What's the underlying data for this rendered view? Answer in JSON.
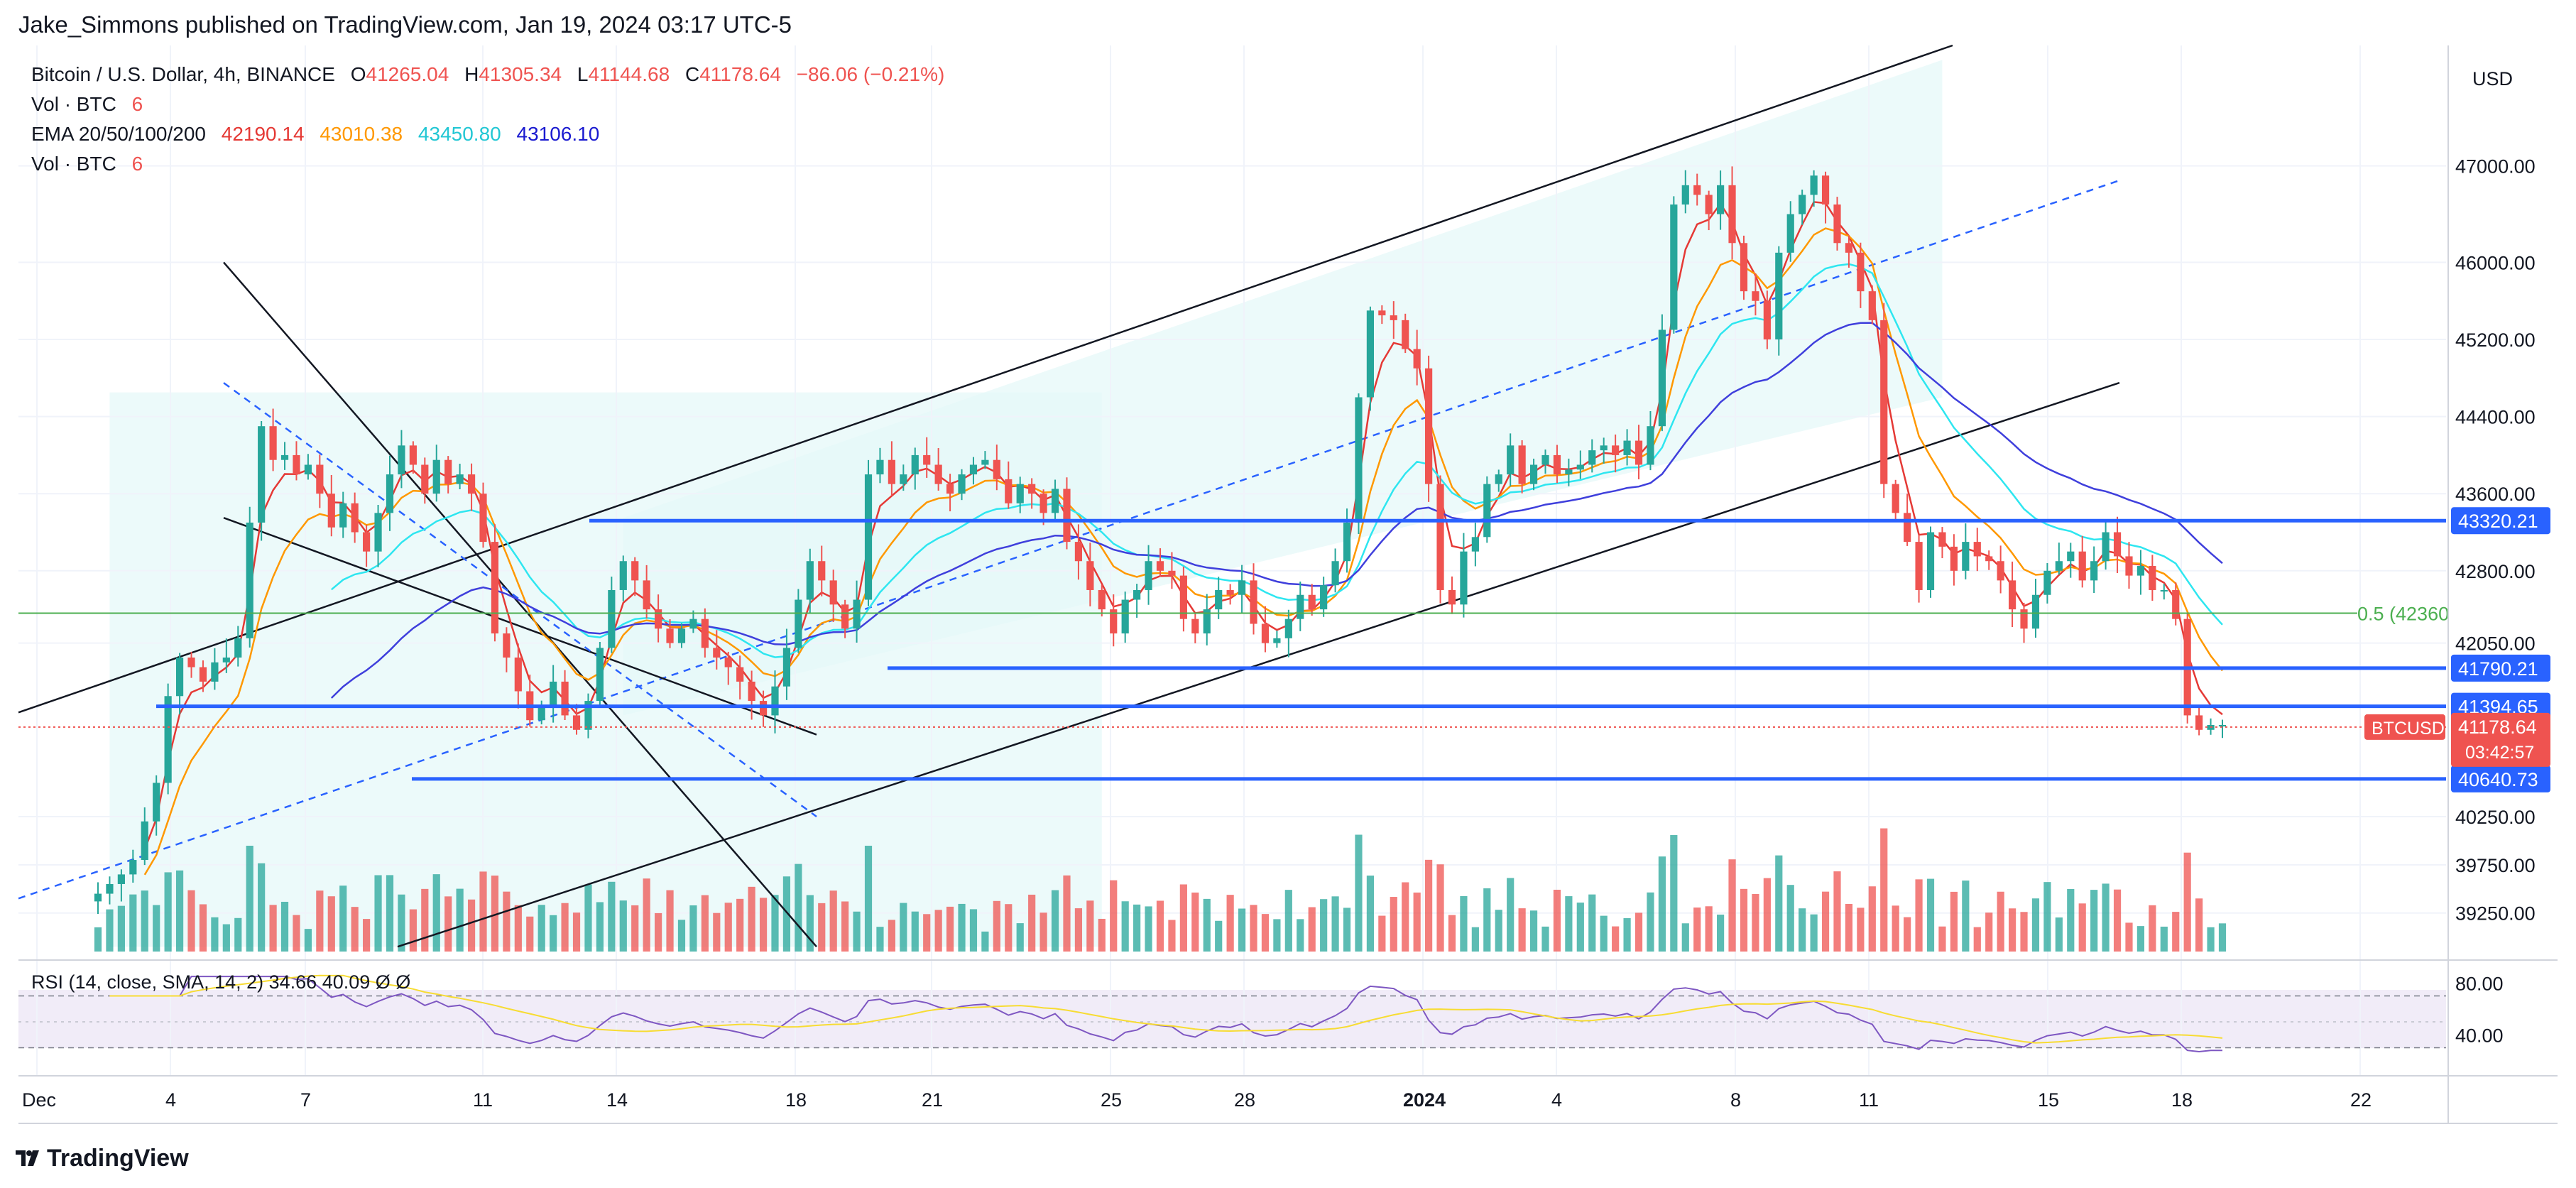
{
  "publisher": "Jake_Simmons published on TradingView.com, Jan 19, 2024 03:17 UTC-5",
  "legend": {
    "symbol": "Bitcoin / U.S. Dollar, 4h, BINANCE",
    "open_label": "O",
    "open": "41265.04",
    "high_label": "H",
    "high": "41305.34",
    "low_label": "L",
    "low": "41144.68",
    "close_label": "C",
    "close": "41178.64",
    "change": "−86.06 (−0.21%)",
    "vol_label": "Vol · BTC",
    "vol_value": "6",
    "ema_label": "EMA 20/50/100/200",
    "ema20": "42190.14",
    "ema50": "43010.38",
    "ema100": "43450.80",
    "ema200": "43106.10",
    "vol2_label": "Vol · BTC",
    "vol2_value": "6"
  },
  "colors": {
    "up": "#26a69a",
    "down": "#ef5350",
    "level": "#2962ff",
    "ema20": "#e53935",
    "ema50": "#ff9800",
    "ema100": "#2ee6f0",
    "ema200": "#3f3fdc",
    "fib": "#4caf50",
    "channel_fill": "#e6f8f8"
  },
  "chart_data": {
    "type": "candlestick",
    "instrument": "BTCUSD",
    "timeframe": "4h",
    "currency": "USD",
    "y_ticks": [
      "47000.00",
      "46000.00",
      "45200.00",
      "44400.00",
      "43600.00",
      "42800.00",
      "42050.00",
      "40250.00",
      "39750.00",
      "39250.00"
    ],
    "ylim": [
      38850,
      48250
    ],
    "x_ticks": [
      "Dec",
      "4",
      "7",
      "11",
      "14",
      "18",
      "21",
      "25",
      "28",
      "2024",
      "4",
      "8",
      "11",
      "15",
      "18",
      "22"
    ],
    "levels": [
      {
        "label": "43320.21",
        "value": 43320.21
      },
      {
        "label": "41790.21",
        "value": 41790.21
      },
      {
        "label": "41394.65",
        "value": 41394.65
      },
      {
        "label": "40640.73",
        "value": 40640.73
      }
    ],
    "fib": {
      "label": "0.5 (42360",
      "value": 42360
    },
    "price_label": {
      "symbol": "BTCUSD",
      "value": "41178.64",
      "countdown": "03:42:57"
    },
    "closes": [
      39450,
      39550,
      39650,
      39800,
      40200,
      40600,
      41500,
      41900,
      41800,
      41650,
      41850,
      41900,
      42100,
      43300,
      44300,
      43950,
      44000,
      43800,
      43900,
      43600,
      43250,
      43500,
      43200,
      43000,
      43400,
      43800,
      44100,
      43900,
      43600,
      43950,
      43700,
      43800,
      43600,
      43100,
      42150,
      41900,
      41550,
      41250,
      41400,
      41650,
      41300,
      41150,
      41450,
      42000,
      42600,
      42900,
      42700,
      42400,
      42200,
      42050,
      42200,
      42300,
      42000,
      41900,
      41800,
      41650,
      41450,
      41300,
      41600,
      42000,
      42500,
      42900,
      42700,
      42450,
      42200,
      42500,
      43800,
      43950,
      43700,
      43800,
      44000,
      43900,
      43700,
      43600,
      43800,
      43900,
      43950,
      43750,
      43500,
      43700,
      43600,
      43400,
      43650,
      43100,
      42900,
      42600,
      42400,
      42150,
      42500,
      42600,
      42900,
      42800,
      42750,
      42300,
      42150,
      42400,
      42600,
      42550,
      42700,
      42250,
      42050,
      42100,
      42300,
      42550,
      42400,
      42650,
      42900,
      43300,
      44600,
      45500,
      45450,
      45400,
      45100,
      44900,
      43700,
      42600,
      42450,
      43000,
      43150,
      43700,
      43800,
      44100,
      43700,
      43900,
      44000,
      43800,
      43850,
      43900,
      44050,
      44100,
      44000,
      44150,
      43900,
      44300,
      45300,
      46600,
      46800,
      46700,
      46500,
      46800,
      46200,
      45700,
      45600,
      45200,
      46100,
      46500,
      46700,
      46900,
      46600,
      46200,
      46100,
      45700,
      45400,
      43700,
      43400,
      43100,
      42600,
      43200,
      43050,
      42800,
      43100,
      42950,
      42900,
      42700,
      42400,
      42200,
      42550,
      42800,
      42900,
      43000,
      42700,
      42900,
      43200,
      42950,
      42750,
      42850,
      42600,
      42600,
      42300,
      41300,
      41150,
      41200,
      41200
    ]
  },
  "footer": {
    "brand": "TradingView"
  }
}
